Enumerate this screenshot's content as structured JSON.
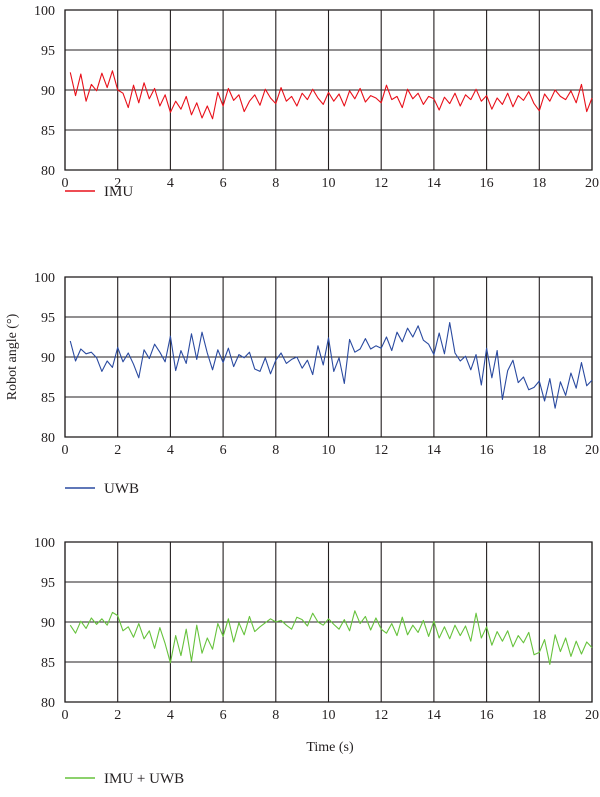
{
  "x_ticks": [
    "0",
    "2",
    "4",
    "6",
    "8",
    "10",
    "12",
    "14",
    "16",
    "18",
    "20"
  ],
  "y_ticks": [
    "80",
    "85",
    "90",
    "95",
    "100"
  ],
  "ylabel": "Robot angle (°)",
  "xlabel": "Time (s)",
  "chart_data": [
    {
      "type": "line",
      "title": "",
      "xlabel": "",
      "ylabel": "",
      "xlim": [
        0,
        20
      ],
      "ylim": [
        80,
        100
      ],
      "grid": true,
      "legend_position": "bottom-left",
      "series": [
        {
          "name": "IMU",
          "color": "#e8101a",
          "x": [
            0.2,
            0.4,
            0.6,
            0.8,
            1.0,
            1.2,
            1.4,
            1.6,
            1.8,
            2.0,
            2.2,
            2.4,
            2.6,
            2.8,
            3.0,
            3.2,
            3.4,
            3.6,
            3.8,
            4.0,
            4.2,
            4.4,
            4.6,
            4.8,
            5.0,
            5.2,
            5.4,
            5.6,
            5.8,
            6.0,
            6.2,
            6.4,
            6.6,
            6.8,
            7.0,
            7.2,
            7.4,
            7.6,
            7.8,
            8.0,
            8.2,
            8.4,
            8.6,
            8.8,
            9.0,
            9.2,
            9.4,
            9.6,
            9.8,
            10.0,
            10.2,
            10.4,
            10.6,
            10.8,
            11.0,
            11.2,
            11.4,
            11.6,
            11.8,
            12.0,
            12.2,
            12.4,
            12.6,
            12.8,
            13.0,
            13.2,
            13.4,
            13.6,
            13.8,
            14.0,
            14.2,
            14.4,
            14.6,
            14.8,
            15.0,
            15.2,
            15.4,
            15.6,
            15.8,
            16.0,
            16.2,
            16.4,
            16.6,
            16.8,
            17.0,
            17.2,
            17.4,
            17.6,
            17.8,
            18.0,
            18.2,
            18.4,
            18.6,
            18.8,
            19.0,
            19.2,
            19.4,
            19.6,
            19.8,
            20.0
          ],
          "values": [
            92.2,
            89.3,
            92.0,
            88.6,
            90.7,
            89.9,
            92.1,
            90.3,
            92.4,
            90.0,
            89.6,
            87.8,
            90.6,
            88.4,
            90.9,
            88.9,
            90.2,
            88.0,
            89.4,
            87.2,
            88.6,
            87.6,
            89.2,
            86.9,
            88.4,
            86.5,
            88.0,
            86.4,
            89.7,
            88.0,
            90.2,
            88.7,
            89.4,
            87.3,
            88.6,
            89.4,
            88.1,
            90.1,
            89.0,
            88.3,
            90.3,
            88.6,
            89.2,
            88.0,
            89.6,
            88.8,
            90.1,
            89.0,
            88.2,
            89.7,
            88.6,
            89.5,
            88.0,
            89.9,
            88.9,
            90.2,
            88.5,
            89.3,
            89.0,
            88.4,
            90.6,
            88.8,
            89.2,
            87.8,
            90.1,
            88.9,
            89.6,
            88.2,
            89.2,
            88.9,
            87.5,
            89.1,
            88.3,
            89.6,
            88.0,
            89.4,
            88.8,
            90.1,
            88.6,
            89.3,
            87.6,
            89.0,
            88.2,
            89.6,
            87.9,
            89.3,
            88.7,
            89.8,
            88.3,
            87.4,
            89.5,
            88.6,
            90.0,
            89.2,
            88.8,
            89.9,
            88.4,
            90.7,
            87.3,
            89.0
          ]
        },
        {
          "name": "UWB",
          "color": "#2a4aa0",
          "x": [
            0.2,
            0.4,
            0.6,
            0.8,
            1.0,
            1.2,
            1.4,
            1.6,
            1.8,
            2.0,
            2.2,
            2.4,
            2.6,
            2.8,
            3.0,
            3.2,
            3.4,
            3.6,
            3.8,
            4.0,
            4.2,
            4.4,
            4.6,
            4.8,
            5.0,
            5.2,
            5.4,
            5.6,
            5.8,
            6.0,
            6.2,
            6.4,
            6.6,
            6.8,
            7.0,
            7.2,
            7.4,
            7.6,
            7.8,
            8.0,
            8.2,
            8.4,
            8.6,
            8.8,
            9.0,
            9.2,
            9.4,
            9.6,
            9.8,
            10.0,
            10.2,
            10.4,
            10.6,
            10.8,
            11.0,
            11.2,
            11.4,
            11.6,
            11.8,
            12.0,
            12.2,
            12.4,
            12.6,
            12.8,
            13.0,
            13.2,
            13.4,
            13.6,
            13.8,
            14.0,
            14.2,
            14.4,
            14.6,
            14.8,
            15.0,
            15.2,
            15.4,
            15.6,
            15.8,
            16.0,
            16.2,
            16.4,
            16.6,
            16.8,
            17.0,
            17.2,
            17.4,
            17.6,
            17.8,
            18.0,
            18.2,
            18.4,
            18.6,
            18.8,
            19.0,
            19.2,
            19.4,
            19.6,
            19.8,
            20.0
          ],
          "values": [
            92.0,
            89.5,
            91.0,
            90.4,
            90.6,
            89.9,
            88.2,
            89.5,
            88.7,
            91.2,
            89.4,
            90.5,
            89.1,
            87.4,
            90.9,
            89.8,
            91.6,
            90.6,
            89.4,
            92.6,
            88.3,
            90.8,
            89.2,
            92.9,
            89.7,
            93.1,
            90.5,
            88.4,
            90.9,
            89.3,
            91.1,
            88.8,
            90.3,
            89.9,
            90.6,
            88.5,
            88.2,
            89.9,
            87.9,
            89.6,
            90.5,
            89.2,
            89.7,
            90.0,
            88.6,
            89.6,
            87.8,
            91.4,
            89.0,
            92.4,
            88.2,
            89.9,
            86.7,
            92.2,
            90.6,
            91.0,
            92.3,
            91.0,
            91.4,
            91.1,
            92.5,
            90.8,
            93.1,
            91.9,
            93.6,
            92.5,
            93.9,
            92.1,
            91.6,
            90.3,
            93.0,
            90.4,
            94.3,
            90.5,
            89.5,
            90.1,
            88.4,
            90.3,
            86.5,
            91.1,
            87.4,
            90.8,
            84.7,
            88.3,
            89.6,
            86.8,
            87.5,
            85.9,
            86.2,
            87.0,
            84.5,
            87.3,
            83.6,
            86.9,
            85.2,
            88.0,
            86.1,
            89.3,
            86.4,
            87.1
          ]
        },
        {
          "name": "IMU + UWB",
          "color": "#66c23c",
          "x": [
            0.2,
            0.4,
            0.6,
            0.8,
            1.0,
            1.2,
            1.4,
            1.6,
            1.8,
            2.0,
            2.2,
            2.4,
            2.6,
            2.8,
            3.0,
            3.2,
            3.4,
            3.6,
            3.8,
            4.0,
            4.2,
            4.4,
            4.6,
            4.8,
            5.0,
            5.2,
            5.4,
            5.6,
            5.8,
            6.0,
            6.2,
            6.4,
            6.6,
            6.8,
            7.0,
            7.2,
            7.4,
            7.6,
            7.8,
            8.0,
            8.2,
            8.4,
            8.6,
            8.8,
            9.0,
            9.2,
            9.4,
            9.6,
            9.8,
            10.0,
            10.2,
            10.4,
            10.6,
            10.8,
            11.0,
            11.2,
            11.4,
            11.6,
            11.8,
            12.0,
            12.2,
            12.4,
            12.6,
            12.8,
            13.0,
            13.2,
            13.4,
            13.6,
            13.8,
            14.0,
            14.2,
            14.4,
            14.6,
            14.8,
            15.0,
            15.2,
            15.4,
            15.6,
            15.8,
            16.0,
            16.2,
            16.4,
            16.6,
            16.8,
            17.0,
            17.2,
            17.4,
            17.6,
            17.8,
            18.0,
            18.2,
            18.4,
            18.6,
            18.8,
            19.0,
            19.2,
            19.4,
            19.6,
            19.8,
            20.0
          ],
          "values": [
            89.6,
            88.6,
            90.1,
            89.2,
            90.5,
            89.7,
            90.4,
            89.6,
            91.2,
            90.8,
            88.9,
            89.4,
            88.1,
            89.8,
            87.9,
            88.9,
            86.7,
            89.3,
            87.3,
            84.9,
            88.3,
            85.8,
            89.1,
            85.1,
            89.6,
            86.1,
            88.0,
            86.6,
            89.8,
            88.2,
            90.4,
            87.5,
            89.9,
            88.4,
            90.7,
            88.8,
            89.4,
            89.9,
            90.4,
            90.0,
            90.2,
            89.6,
            89.1,
            90.6,
            90.3,
            89.5,
            91.1,
            90.0,
            89.6,
            90.4,
            89.7,
            89.1,
            90.3,
            88.9,
            91.4,
            89.8,
            90.7,
            89.0,
            90.5,
            89.1,
            88.6,
            89.8,
            88.3,
            90.6,
            88.4,
            89.6,
            88.7,
            90.2,
            88.2,
            90.1,
            88.0,
            89.4,
            87.9,
            89.6,
            88.3,
            89.5,
            87.6,
            91.1,
            88.0,
            89.4,
            87.1,
            88.8,
            87.6,
            88.9,
            86.9,
            88.3,
            87.4,
            88.7,
            85.9,
            86.2,
            87.8,
            84.7,
            88.4,
            86.3,
            88.0,
            85.7,
            87.6,
            86.0,
            87.5,
            86.8
          ]
        }
      ]
    }
  ]
}
